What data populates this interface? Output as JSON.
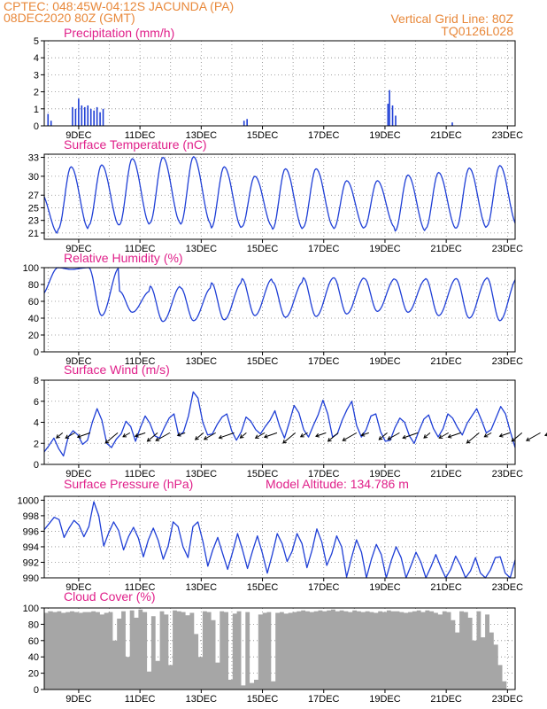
{
  "header": {
    "line1": "CPTEC:   048:45W-04:12S  JACUNDA (PA)",
    "line2": "08DEC2020 80Z (GMT)",
    "right1": "Vertical Grid Line: 80Z",
    "right2": "TQ0126L028"
  },
  "model_altitude": "Model Altitude: 134.786 m",
  "colors": {
    "line": "#1f3fd6",
    "title": "#e0208a",
    "header": "#e8883a",
    "cloud": "#a6a6a6"
  },
  "chart_data": [
    {
      "type": "bar",
      "title": "Precipitation (mm/h)",
      "ylim": [
        0,
        5
      ],
      "yticks": [
        "0",
        "1",
        "2",
        "3",
        "4",
        "5"
      ],
      "xticks": [
        "9DEC",
        "11DEC",
        "13DEC",
        "15DEC",
        "17DEC",
        "19DEC",
        "21DEC",
        "23DEC"
      ],
      "bars": [
        [
          0.1,
          0.7
        ],
        [
          0.2,
          0.3
        ],
        [
          0.9,
          1.1
        ],
        [
          1.0,
          1.0
        ],
        [
          1.1,
          1.6
        ],
        [
          1.2,
          1.2
        ],
        [
          1.3,
          1.1
        ],
        [
          1.4,
          1.2
        ],
        [
          1.5,
          1.0
        ],
        [
          1.6,
          0.9
        ],
        [
          1.7,
          1.1
        ],
        [
          1.8,
          0.8
        ],
        [
          1.9,
          1.0
        ],
        [
          6.5,
          0.3
        ],
        [
          6.6,
          0.4
        ],
        [
          11.2,
          1.3
        ],
        [
          11.25,
          2.1
        ],
        [
          11.35,
          1.2
        ],
        [
          11.45,
          0.6
        ],
        [
          13.3,
          0.2
        ],
        [
          17.9,
          0.3
        ],
        [
          18.0,
          0.7
        ],
        [
          18.1,
          0.5
        ],
        [
          18.8,
          0.8
        ],
        [
          18.9,
          0.4
        ],
        [
          20.8,
          0.4
        ],
        [
          20.9,
          0.2
        ]
      ]
    },
    {
      "type": "line",
      "title": "Surface Temperature (nC)",
      "ylim": [
        20,
        33.5
      ],
      "yticks": [
        "21",
        "23",
        "25",
        "27",
        "30",
        "33"
      ],
      "ytick_values": [
        21,
        23,
        25,
        27,
        30,
        33
      ],
      "xticks": [
        "9DEC",
        "11DEC",
        "13DEC",
        "15DEC",
        "17DEC",
        "19DEC",
        "21DEC",
        "23DEC"
      ],
      "days": [
        {
          "low": 20.9,
          "high": 27.5
        },
        {
          "low": 21.6,
          "high": 31.5
        },
        {
          "low": 22.2,
          "high": 31.8
        },
        {
          "low": 22.3,
          "high": 32.8
        },
        {
          "low": 22.6,
          "high": 33.0
        },
        {
          "low": 22.4,
          "high": 33.1
        },
        {
          "low": 21.8,
          "high": 31.5
        },
        {
          "low": 22.0,
          "high": 30.0
        },
        {
          "low": 21.6,
          "high": 31.2
        },
        {
          "low": 21.9,
          "high": 31.2
        },
        {
          "low": 21.7,
          "high": 29.3
        },
        {
          "low": 21.9,
          "high": 29.3
        },
        {
          "low": 21.3,
          "high": 30.2
        },
        {
          "low": 21.7,
          "high": 30.6
        },
        {
          "low": 21.8,
          "high": 31.3
        },
        {
          "low": 22.1,
          "high": 31.7
        }
      ]
    },
    {
      "type": "line",
      "title": "Relative Humidity (%)",
      "ylim": [
        0,
        100
      ],
      "yticks": [
        "0",
        "20",
        "40",
        "60",
        "80",
        "100"
      ],
      "xticks": [
        "9DEC",
        "11DEC",
        "13DEC",
        "15DEC",
        "17DEC",
        "19DEC",
        "21DEC",
        "23DEC"
      ],
      "days": [
        {
          "low": 66,
          "high": 100
        },
        {
          "low": 98,
          "high": 100
        },
        {
          "low": 43,
          "high": 100
        },
        {
          "low": 47,
          "high": 72
        },
        {
          "low": 36,
          "high": 78
        },
        {
          "low": 37,
          "high": 76
        },
        {
          "low": 38,
          "high": 82
        },
        {
          "low": 43,
          "high": 87
        },
        {
          "low": 41,
          "high": 83
        },
        {
          "low": 42,
          "high": 88
        },
        {
          "low": 45,
          "high": 88
        },
        {
          "low": 48,
          "high": 87
        },
        {
          "low": 47,
          "high": 86
        },
        {
          "low": 43,
          "high": 87
        },
        {
          "low": 40,
          "high": 87
        },
        {
          "low": 37,
          "high": 88
        },
        {
          "low": 53,
          "high": 75
        }
      ]
    },
    {
      "type": "line",
      "title": "Surface Wind (m/s)",
      "ylim": [
        0,
        8
      ],
      "yticks": [
        "0",
        "2",
        "4",
        "6",
        "8"
      ],
      "xticks": [
        "9DEC",
        "11DEC",
        "13DEC",
        "15DEC",
        "17DEC",
        "19DEC",
        "21DEC",
        "23DEC"
      ],
      "values": [
        1.2,
        1.8,
        2.5,
        1.5,
        0.8,
        2.6,
        3.2,
        2.8,
        1.9,
        2.3,
        4.0,
        5.3,
        4.2,
        2.0,
        1.6,
        2.4,
        2.9,
        4.1,
        3.6,
        2.2,
        3.5,
        4.6,
        3.9,
        2.7,
        2.5,
        3.5,
        4.4,
        4.8,
        2.7,
        3.1,
        4.6,
        6.9,
        6.3,
        4.0,
        2.8,
        2.9,
        3.8,
        4.5,
        4.8,
        3.2,
        2.3,
        3.1,
        4.5,
        4.1,
        3.3,
        2.9,
        3.6,
        4.2,
        5.1,
        3.6,
        2.5,
        4.0,
        5.6,
        4.9,
        3.3,
        2.6,
        3.7,
        4.7,
        6.1,
        4.8,
        2.6,
        2.9,
        4.2,
        5.2,
        6.0,
        3.7,
        2.6,
        3.3,
        4.6,
        4.8,
        3.1,
        2.2,
        2.3,
        3.5,
        4.4,
        4.0,
        2.7,
        2.0,
        3.2,
        4.3,
        4.7,
        3.4,
        2.6,
        3.4,
        4.8,
        4.4,
        3.5,
        2.8,
        3.9,
        4.6,
        5.3,
        4.2,
        3.0,
        3.3,
        4.4,
        5.5,
        4.8,
        3.1,
        1.6
      ],
      "arrows": [
        0.6,
        1.0,
        1.5,
        2.4,
        2.8,
        3.3,
        3.7,
        4.1,
        4.6,
        5.2,
        5.6,
        6.2,
        6.6,
        7.2,
        7.6,
        8.2,
        8.6,
        9.2,
        9.6,
        10.2,
        10.6,
        11.2,
        11.6,
        12.2,
        12.6,
        13.2,
        13.6,
        14.2,
        14.6,
        15.2,
        15.6,
        16.2,
        16.6,
        17.2,
        17.6
      ]
    },
    {
      "type": "line",
      "title": "Surface Pressure (hPa)",
      "ylim": [
        990,
        1000.5
      ],
      "yticks": [
        "990",
        "992",
        "994",
        "996",
        "998",
        "1000"
      ],
      "xticks": [
        "9DEC",
        "11DEC",
        "13DEC",
        "15DEC",
        "17DEC",
        "19DEC",
        "21DEC",
        "23DEC"
      ],
      "values": [
        996.2,
        997.0,
        997.8,
        997.5,
        995.2,
        996.4,
        997.4,
        996.8,
        995.3,
        996.6,
        999.8,
        998.0,
        994.1,
        995.8,
        997.2,
        996.1,
        993.6,
        995.3,
        996.5,
        995.1,
        992.7,
        994.9,
        996.4,
        994.8,
        992.4,
        994.1,
        997.2,
        996.6,
        994.0,
        992.6,
        996.6,
        997.2,
        994.7,
        991.5,
        993.6,
        995.2,
        993.1,
        991.1,
        993.3,
        995.7,
        993.6,
        991.2,
        993.4,
        995.4,
        993.2,
        990.6,
        993.0,
        995.7,
        994.4,
        992.1,
        993.4,
        995.7,
        994.4,
        991.3,
        993.5,
        996.3,
        994.6,
        991.6,
        993.1,
        995.4,
        994.0,
        990.1,
        992.6,
        994.9,
        993.3,
        990.0,
        992.4,
        994.3,
        993.0,
        990.0,
        992.2,
        994.0,
        992.6,
        990.0,
        991.6,
        993.3,
        992.0,
        990.0,
        991.4,
        993.0,
        991.4,
        990.0,
        991.1,
        992.8,
        991.6,
        990.0,
        990.9,
        992.6,
        990.6,
        990.0,
        991.0,
        992.6,
        992.7,
        990.6,
        989.5,
        992.3
      ],
      "annotation": "Model Altitude: 134.786 m"
    },
    {
      "type": "area",
      "title": "Cloud Cover (%)",
      "ylim": [
        0,
        100
      ],
      "yticks": [
        "0",
        "20",
        "40",
        "60",
        "80",
        "100"
      ],
      "xticks": [
        "9DEC",
        "11DEC",
        "13DEC",
        "15DEC",
        "17DEC",
        "19DEC",
        "21DEC",
        "23DEC"
      ],
      "values": [
        94,
        96,
        95,
        96,
        94,
        95,
        96,
        95,
        94,
        95,
        95,
        96,
        95,
        92,
        94,
        95,
        60,
        87,
        96,
        40,
        97,
        88,
        98,
        95,
        22,
        90,
        35,
        96,
        92,
        30,
        97,
        96,
        95,
        91,
        94,
        68,
        40,
        96,
        95,
        85,
        33,
        96,
        95,
        12,
        93,
        96,
        5,
        95,
        8,
        12,
        92,
        94,
        95,
        10,
        94,
        95,
        93,
        94,
        95,
        96,
        97,
        96,
        95,
        96,
        97,
        96,
        97,
        98,
        96,
        97,
        96,
        95,
        97,
        96,
        95,
        96,
        95,
        94,
        96,
        95,
        97,
        96,
        96,
        95,
        94,
        95,
        96,
        97,
        95,
        97,
        96,
        94,
        92,
        96,
        95,
        85,
        70,
        96,
        95,
        88,
        60,
        96,
        64,
        92,
        70,
        55,
        30,
        10,
        0,
        0
      ]
    }
  ]
}
